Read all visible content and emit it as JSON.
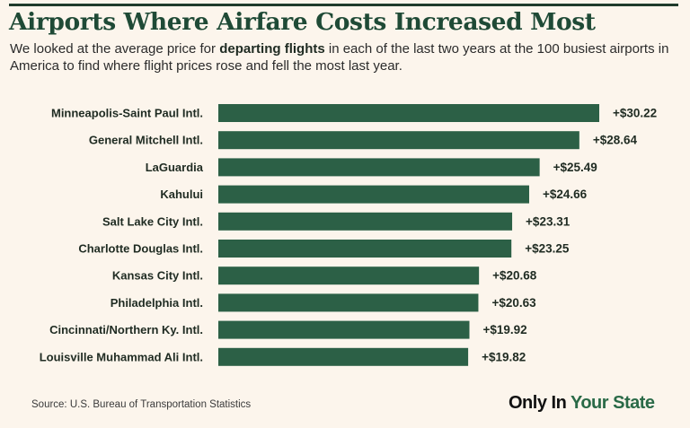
{
  "header": {
    "title": "Airports Where Airfare Costs Increased Most",
    "subtitle_before": "We looked at the average price for ",
    "subtitle_bold": "departing flights",
    "subtitle_after": " in each of the last two years at the 100 busiest airports in America to find where flight prices rose and fell the most last year."
  },
  "footer": {
    "source": "Source: U.S. Bureau of Transportation Statistics",
    "brand_part1": "Only In ",
    "brand_part2": "Your State"
  },
  "colors": {
    "background": "#fcf5ec",
    "bar": "#2c6046",
    "title": "#1f4a36",
    "text": "#1f2b22"
  },
  "chart_data": {
    "type": "bar",
    "orientation": "horizontal",
    "categories": [
      "Minneapolis-Saint Paul Intl.",
      "General Mitchell Intl.",
      "LaGuardia",
      "Kahului",
      "Salt Lake City Intl.",
      "Charlotte Douglas Intl.",
      "Kansas City Intl.",
      "Philadelphia Intl.",
      "Cincinnati/Northern Ky. Intl.",
      "Louisville Muhammad Ali Intl."
    ],
    "values": [
      30.22,
      28.64,
      25.49,
      24.66,
      23.31,
      23.25,
      20.68,
      20.63,
      19.92,
      19.82
    ],
    "value_labels": [
      "+$30.22",
      "+$28.64",
      "+$25.49",
      "+$24.66",
      "+$23.31",
      "+$23.25",
      "+$20.68",
      "+$20.63",
      "+$19.92",
      "+$19.82"
    ],
    "xlim": [
      0,
      30.22
    ],
    "grid": false,
    "legend": "none"
  }
}
